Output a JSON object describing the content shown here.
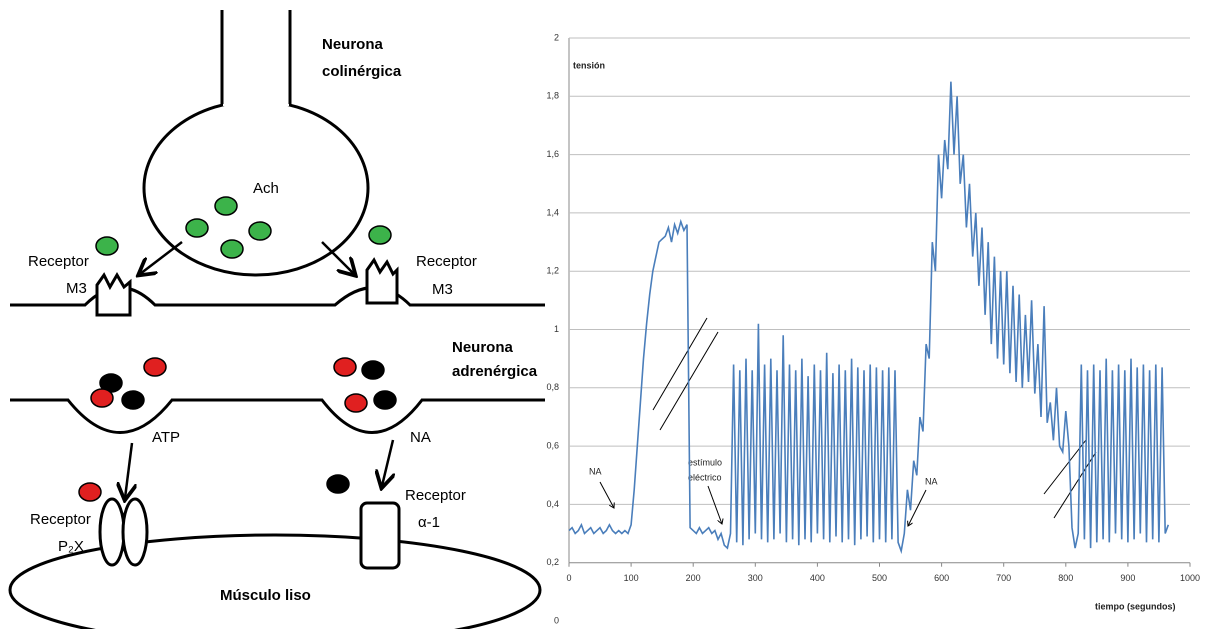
{
  "diagram": {
    "cholinergic": [
      "Neurona",
      "colinérgica"
    ],
    "ach": "Ach",
    "receptor_m3_left": [
      "Receptor",
      "M3"
    ],
    "receptor_m3_right": [
      "Receptor",
      "M3"
    ],
    "adrenergic": [
      "Neurona",
      "adrenérgica"
    ],
    "atp": "ATP",
    "na": "NA",
    "receptor_p2x": [
      "Receptor",
      "P₂X"
    ],
    "receptor_a1": [
      "Receptor",
      "α-1"
    ],
    "muscle": "Músculo liso"
  },
  "chart_data": {
    "type": "line",
    "y_label": "tensión",
    "x_label": "tiempo (segundos)",
    "annotations": [
      "NA",
      "estímulo",
      "eléctrico",
      "NA"
    ],
    "color": "#4a7ebb",
    "grid": true,
    "xlim": [
      0,
      1000
    ],
    "xticks": [
      0,
      100,
      200,
      300,
      400,
      500,
      600,
      700,
      800,
      900,
      1000
    ],
    "ylim": [
      0,
      2
    ],
    "yticks": [
      0,
      {
        "value": 0.2,
        "label": "0,2"
      },
      {
        "value": 0.4,
        "label": "0,4"
      },
      {
        "value": 0.6,
        "label": "0,6"
      },
      {
        "value": 0.8,
        "label": "0,8"
      },
      1,
      {
        "value": 1.2,
        "label": "1,2"
      },
      {
        "value": 1.4,
        "label": "1,4"
      },
      {
        "value": 1.6,
        "label": "1,6"
      },
      {
        "value": 1.8,
        "label": "1,8"
      },
      2
    ],
    "x": [
      0,
      5,
      10,
      15,
      20,
      25,
      30,
      35,
      40,
      45,
      50,
      55,
      60,
      65,
      70,
      75,
      80,
      85,
      90,
      95,
      100,
      105,
      110,
      115,
      120,
      125,
      130,
      135,
      140,
      145,
      150,
      155,
      160,
      165,
      170,
      175,
      180,
      185,
      190,
      195,
      200,
      205,
      210,
      215,
      220,
      225,
      230,
      235,
      240,
      245,
      250,
      255,
      260,
      265,
      270,
      275,
      280,
      285,
      290,
      295,
      300,
      305,
      310,
      315,
      320,
      325,
      330,
      335,
      340,
      345,
      350,
      355,
      360,
      365,
      370,
      375,
      380,
      385,
      390,
      395,
      400,
      405,
      410,
      415,
      420,
      425,
      430,
      435,
      440,
      445,
      450,
      455,
      460,
      465,
      470,
      475,
      480,
      485,
      490,
      495,
      500,
      505,
      510,
      515,
      520,
      525,
      530,
      535,
      540,
      545,
      550,
      555,
      560,
      565,
      570,
      575,
      580,
      585,
      590,
      595,
      600,
      605,
      610,
      615,
      620,
      625,
      630,
      635,
      640,
      645,
      650,
      655,
      660,
      665,
      670,
      675,
      680,
      685,
      690,
      695,
      700,
      705,
      710,
      715,
      720,
      725,
      730,
      735,
      740,
      745,
      750,
      755,
      760,
      765,
      770,
      775,
      780,
      785,
      790,
      795,
      800,
      805,
      810,
      815,
      820,
      825,
      830,
      835,
      840,
      845,
      850,
      855,
      860,
      865,
      870,
      875,
      880,
      885,
      890,
      895,
      900,
      905,
      910,
      915,
      920,
      925,
      930,
      935,
      940,
      945,
      950,
      955,
      960,
      965
    ],
    "values": [
      0.31,
      0.32,
      0.3,
      0.31,
      0.33,
      0.3,
      0.31,
      0.32,
      0.3,
      0.31,
      0.32,
      0.3,
      0.31,
      0.33,
      0.31,
      0.3,
      0.31,
      0.3,
      0.31,
      0.3,
      0.33,
      0.45,
      0.6,
      0.75,
      0.9,
      1.02,
      1.12,
      1.2,
      1.25,
      1.3,
      1.31,
      1.32,
      1.35,
      1.3,
      1.36,
      1.33,
      1.37,
      1.34,
      1.36,
      0.32,
      0.31,
      0.3,
      0.32,
      0.3,
      0.31,
      0.32,
      0.3,
      0.31,
      0.28,
      0.3,
      0.26,
      0.25,
      0.3,
      0.88,
      0.27,
      0.86,
      0.26,
      0.9,
      0.28,
      0.86,
      0.3,
      1.02,
      0.28,
      0.88,
      0.27,
      0.9,
      0.28,
      0.86,
      0.3,
      0.98,
      0.27,
      0.88,
      0.28,
      0.86,
      0.26,
      0.9,
      0.28,
      0.84,
      0.27,
      0.88,
      0.3,
      0.86,
      0.28,
      0.92,
      0.27,
      0.85,
      0.29,
      0.88,
      0.27,
      0.86,
      0.28,
      0.9,
      0.26,
      0.87,
      0.28,
      0.86,
      0.29,
      0.88,
      0.27,
      0.87,
      0.28,
      0.86,
      0.27,
      0.87,
      0.28,
      0.86,
      0.27,
      0.24,
      0.3,
      0.45,
      0.38,
      0.55,
      0.5,
      0.7,
      0.65,
      0.95,
      0.9,
      1.3,
      1.2,
      1.6,
      1.45,
      1.65,
      1.55,
      1.85,
      1.6,
      1.8,
      1.5,
      1.6,
      1.35,
      1.5,
      1.25,
      1.4,
      1.15,
      1.35,
      1.05,
      1.3,
      0.95,
      1.25,
      0.9,
      1.2,
      0.88,
      1.2,
      0.85,
      1.15,
      0.82,
      1.12,
      0.8,
      1.05,
      0.82,
      1.1,
      0.78,
      0.95,
      0.7,
      1.08,
      0.68,
      0.75,
      0.62,
      0.8,
      0.6,
      0.58,
      0.72,
      0.6,
      0.32,
      0.25,
      0.3,
      0.88,
      0.28,
      0.86,
      0.25,
      0.88,
      0.27,
      0.86,
      0.28,
      0.9,
      0.27,
      0.86,
      0.3,
      0.88,
      0.28,
      0.86,
      0.27,
      0.9,
      0.28,
      0.87,
      0.3,
      0.88,
      0.27,
      0.86,
      0.28,
      0.88,
      0.27,
      0.87,
      0.3,
      0.33
    ]
  }
}
